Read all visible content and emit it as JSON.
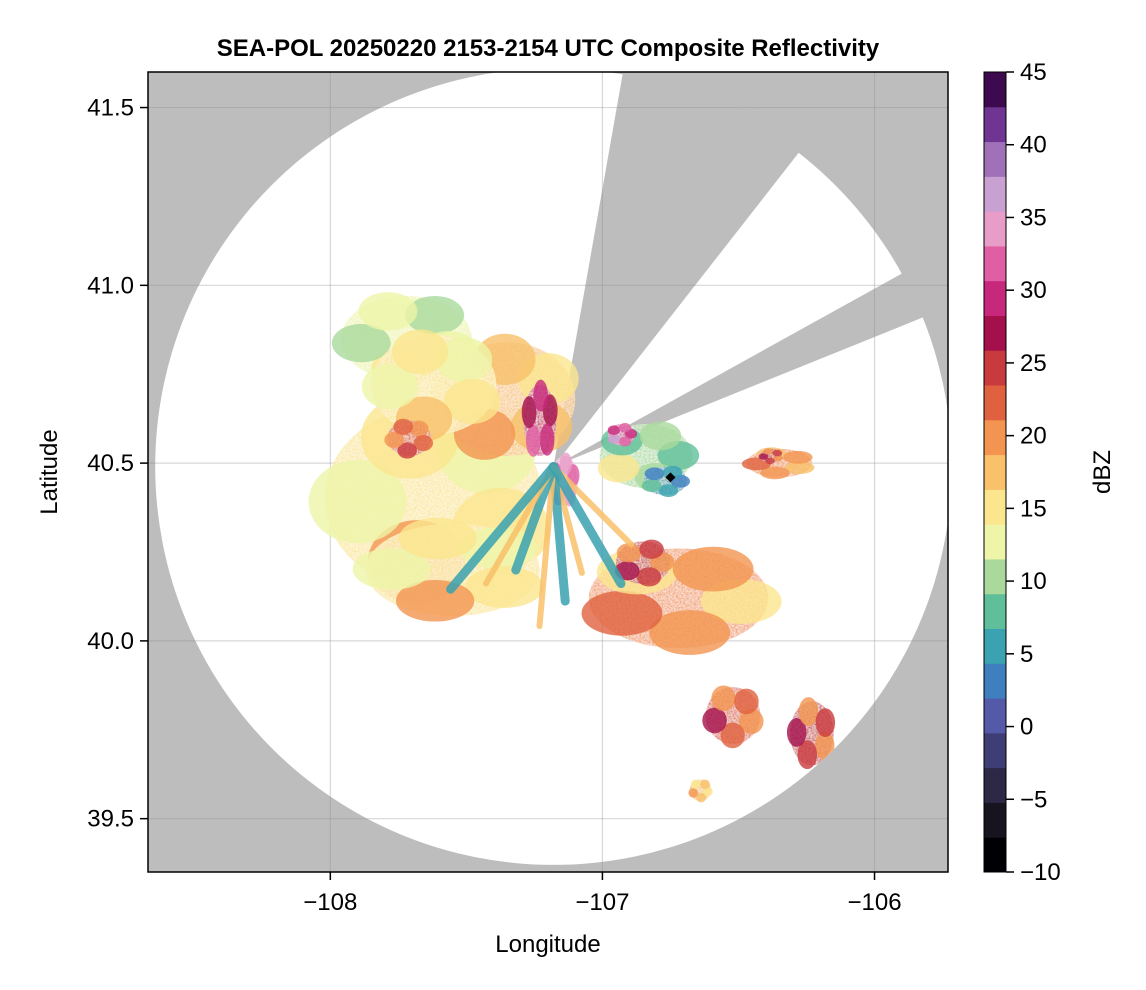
{
  "chart_data": {
    "type": "heatmap",
    "title": "SEA-POL 20250220 2153-2154 UTC Composite Reflectivity",
    "xlabel": "Longitude",
    "ylabel": "Latitude",
    "xlim": [
      -108.67,
      -105.73
    ],
    "ylim": [
      39.35,
      41.6
    ],
    "x_ticks": [
      {
        "value": -108,
        "label": "−108"
      },
      {
        "value": -107,
        "label": "−107"
      },
      {
        "value": -106,
        "label": "−106"
      }
    ],
    "y_ticks": [
      {
        "value": 39.5,
        "label": "39.5"
      },
      {
        "value": 40.0,
        "label": "40.0"
      },
      {
        "value": 40.5,
        "label": "40.5"
      },
      {
        "value": 41.0,
        "label": "41.0"
      },
      {
        "value": 41.5,
        "label": "41.5"
      }
    ],
    "grid": true,
    "radar": {
      "center_lon": -107.18,
      "center_lat": 40.49,
      "range_deg_lat": 1.12,
      "blocked_sectors_deg_from_north": [
        [
          10,
          38
        ],
        [
          61,
          68
        ]
      ]
    },
    "marker": {
      "lon": -106.75,
      "lat": 40.46,
      "shape": "diamond"
    },
    "colorbar": {
      "label": "dBZ",
      "min": -10,
      "max": 45,
      "ticks": [
        {
          "value": -10,
          "label": "−10"
        },
        {
          "value": -5,
          "label": "−5"
        },
        {
          "value": 0,
          "label": "0"
        },
        {
          "value": 5,
          "label": "5"
        },
        {
          "value": 10,
          "label": "10"
        },
        {
          "value": 15,
          "label": "15"
        },
        {
          "value": 20,
          "label": "20"
        },
        {
          "value": 25,
          "label": "25"
        },
        {
          "value": 30,
          "label": "30"
        },
        {
          "value": 35,
          "label": "35"
        },
        {
          "value": 40,
          "label": "40"
        },
        {
          "value": 45,
          "label": "45"
        }
      ],
      "colors": [
        "#000004",
        "#17131f",
        "#2c2846",
        "#3f3d75",
        "#545aa8",
        "#3f7fc0",
        "#3aa2b0",
        "#5fbf9a",
        "#a9da9c",
        "#eef5a8",
        "#fbe68e",
        "#f8c16a",
        "#f39550",
        "#e0613f",
        "#c93a3e",
        "#a4104c",
        "#c8287c",
        "#e05fa4",
        "#e89cc8",
        "#c8a0d2",
        "#a070b8",
        "#703492",
        "#3d0a50"
      ]
    },
    "background_color": "#bdbdbd",
    "coverage_color": "#ffffff",
    "echoes": [
      {
        "name": "western-mass",
        "lon": -107.62,
        "lat": 40.4,
        "rx": 0.4,
        "ry": 0.26,
        "dbz": 16
      },
      {
        "name": "western-mass-south",
        "lon": -107.55,
        "lat": 40.2,
        "rx": 0.32,
        "ry": 0.13,
        "dbz": 16
      },
      {
        "name": "northwest-arm",
        "lon": -107.72,
        "lat": 40.85,
        "rx": 0.24,
        "ry": 0.12,
        "dbz": 13
      },
      {
        "name": "north-central",
        "lon": -107.35,
        "lat": 40.68,
        "rx": 0.25,
        "ry": 0.16,
        "dbz": 17
      },
      {
        "name": "northwest-inner",
        "lon": -107.62,
        "lat": 40.72,
        "rx": 0.23,
        "ry": 0.14,
        "dbz": 15
      },
      {
        "name": "west-core",
        "lon": -107.71,
        "lat": 40.57,
        "rx": 0.08,
        "ry": 0.05,
        "dbz": 22
      },
      {
        "name": "north-core",
        "lon": -107.23,
        "lat": 40.62,
        "rx": 0.06,
        "ry": 0.1,
        "dbz": 30
      },
      {
        "name": "near-radar-core",
        "lon": -107.14,
        "lat": 40.45,
        "rx": 0.05,
        "ry": 0.07,
        "dbz": 35
      },
      {
        "name": "southeast-band",
        "lon": -106.72,
        "lat": 40.12,
        "rx": 0.33,
        "ry": 0.14,
        "dbz": 19
      },
      {
        "name": "southeast-band-core",
        "lon": -106.85,
        "lat": 40.22,
        "rx": 0.1,
        "ry": 0.06,
        "dbz": 24
      },
      {
        "name": "east-sector",
        "lon": -106.84,
        "lat": 40.52,
        "rx": 0.17,
        "ry": 0.09,
        "dbz": 11
      },
      {
        "name": "east-sector-core",
        "lon": -106.93,
        "lat": 40.58,
        "rx": 0.05,
        "ry": 0.03,
        "dbz": 33
      },
      {
        "name": "east-weak",
        "lon": -106.77,
        "lat": 40.45,
        "rx": 0.08,
        "ry": 0.04,
        "dbz": 6
      },
      {
        "name": "far-east-cell",
        "lon": -106.35,
        "lat": 40.5,
        "rx": 0.12,
        "ry": 0.04,
        "dbz": 20
      },
      {
        "name": "far-east-core",
        "lon": -106.38,
        "lat": 40.52,
        "rx": 0.04,
        "ry": 0.02,
        "dbz": 24
      },
      {
        "name": "southeast-cell-a",
        "lon": -106.52,
        "lat": 39.79,
        "rx": 0.1,
        "ry": 0.08,
        "dbz": 23
      },
      {
        "name": "southeast-cell-b",
        "lon": -106.23,
        "lat": 39.74,
        "rx": 0.08,
        "ry": 0.09,
        "dbz": 24
      },
      {
        "name": "south-small-cell",
        "lon": -106.64,
        "lat": 39.58,
        "rx": 0.04,
        "ry": 0.03,
        "dbz": 18
      },
      {
        "name": "radial-spokes",
        "lon": -107.1,
        "lat": 40.3,
        "rx": 0.14,
        "ry": 0.16,
        "dbz": 8
      }
    ]
  }
}
